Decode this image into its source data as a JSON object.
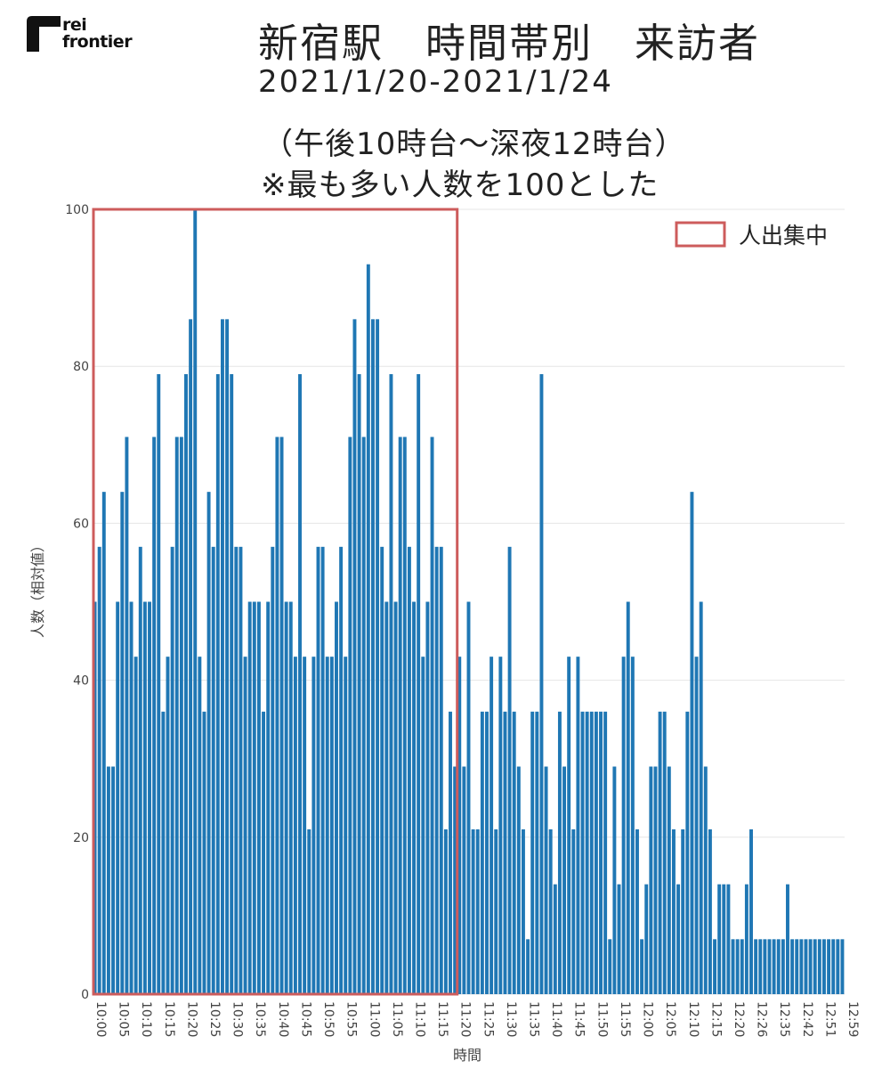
{
  "logo": {
    "line1": "rei",
    "line2": "frontier"
  },
  "header": {
    "title": "新宿駅　時間帯別　来訪者",
    "subtitle": "2021/1/20-2021/1/24",
    "note_line1": "（午後10時台～深夜12時台）",
    "note_line2": "※最も多い人数を100とした"
  },
  "legend": {
    "label": "人出集中"
  },
  "colors": {
    "bar": "#1f77b4",
    "highlight": "#cd5c5c",
    "grid": "#e6e6e6"
  },
  "chart_data": {
    "type": "bar",
    "xlabel": "時間",
    "ylabel": "人数（相対値）",
    "ylim": [
      0,
      100
    ],
    "yticks": [
      0,
      20,
      40,
      60,
      80,
      100
    ],
    "grid": true,
    "legend_position": "top-right",
    "highlight_range": [
      "10:00",
      "11:19"
    ],
    "xtick_labels": [
      "10:00",
      "10:05",
      "10:10",
      "10:15",
      "10:20",
      "10:25",
      "10:30",
      "10:35",
      "10:40",
      "10:45",
      "10:50",
      "10:55",
      "11:00",
      "11:05",
      "11:10",
      "11:15",
      "11:20",
      "11:25",
      "11:30",
      "11:35",
      "11:40",
      "11:45",
      "11:50",
      "11:55",
      "12:00",
      "12:05",
      "12:10",
      "12:15",
      "12:20",
      "12:26",
      "12:35",
      "12:42",
      "12:51",
      "12:59"
    ],
    "values": [
      50,
      57,
      64,
      29,
      29,
      50,
      64,
      71,
      50,
      43,
      57,
      50,
      50,
      71,
      79,
      36,
      43,
      57,
      71,
      71,
      79,
      86,
      100,
      43,
      36,
      64,
      57,
      79,
      86,
      86,
      79,
      57,
      57,
      43,
      50,
      50,
      50,
      36,
      50,
      57,
      71,
      71,
      50,
      50,
      43,
      79,
      43,
      21,
      43,
      57,
      57,
      43,
      43,
      50,
      57,
      43,
      71,
      86,
      79,
      71,
      93,
      86,
      86,
      57,
      50,
      79,
      50,
      71,
      71,
      57,
      50,
      79,
      43,
      50,
      71,
      57,
      57,
      21,
      36,
      29,
      43,
      29,
      50,
      21,
      21,
      36,
      36,
      43,
      21,
      43,
      36,
      57,
      36,
      29,
      21,
      7,
      36,
      36,
      79,
      29,
      21,
      14,
      36,
      29,
      43,
      21,
      43,
      36,
      36,
      36,
      36,
      36,
      36,
      7,
      29,
      14,
      43,
      50,
      43,
      21,
      7,
      14,
      29,
      29,
      36,
      36,
      29,
      21,
      14,
      21,
      36,
      64,
      43,
      50,
      29,
      21,
      7,
      14,
      14,
      14,
      7,
      7,
      7,
      14,
      21,
      7,
      7,
      7,
      7,
      7,
      7,
      7,
      14,
      7,
      7,
      7,
      7,
      7,
      7,
      7,
      7,
      7,
      7,
      7,
      7
    ]
  }
}
